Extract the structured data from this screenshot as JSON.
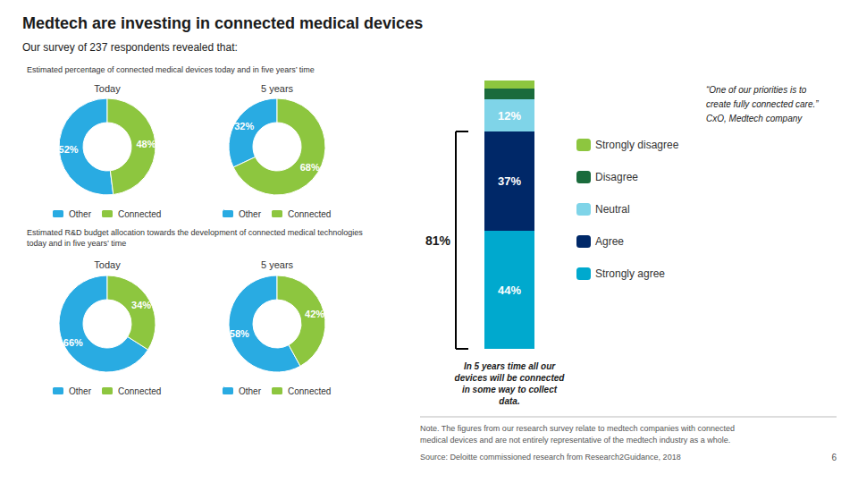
{
  "title": "Medtech are investing in connected medical devices",
  "subtitle": "Our survey of 237 respondents revealed that:",
  "quote": "“One of our priorities is to\ncreate fully connected care.”\nCxO, Medtech company",
  "note": "Note. The figures from our research survey relate to medtech companies with connected\nmedical devices and are not entirely representative of the medtech industry as a whole.",
  "source": "Source: Deloitte commissioned research from Research2Guidance, 2018",
  "page_number": "6",
  "chart_data": [
    {
      "type": "pie",
      "title": "Estimated percentage of connected medical devices today and in five years’ time",
      "categories": [
        "Other",
        "Connected"
      ],
      "colors": [
        "#29abe2",
        "#8dc63f"
      ],
      "legend": "bottom",
      "data_labels": true,
      "series": [
        {
          "name": "Today",
          "values": [
            52,
            48
          ],
          "value_labels": [
            "52%",
            "48%"
          ]
        },
        {
          "name": "5 years",
          "values": [
            32,
            68
          ],
          "value_labels": [
            "32%",
            "68%"
          ]
        }
      ]
    },
    {
      "type": "pie",
      "title": "Estimated R&D budget allocation towards the development of connected medical technologies\ntoday and in five years’ time",
      "categories": [
        "Other",
        "Connected"
      ],
      "colors": [
        "#29abe2",
        "#8dc63f"
      ],
      "legend": "bottom",
      "data_labels": true,
      "series": [
        {
          "name": "Today",
          "values": [
            66,
            34
          ],
          "value_labels": [
            "66%",
            "34%"
          ]
        },
        {
          "name": "5 years",
          "values": [
            58,
            42
          ],
          "value_labels": [
            "58%",
            "42%"
          ]
        }
      ]
    },
    {
      "type": "bar",
      "stacked": true,
      "categories": [
        null
      ],
      "x_label": "In 5 years time all our\ndevices will be connected\nin some way to collect\ndata.",
      "ylim": [
        0,
        100
      ],
      "tick_labels": false,
      "data_labels": true,
      "legend": "right",
      "annotations": [
        {
          "text": "81%",
          "from": 0,
          "to": 81
        }
      ],
      "series": [
        {
          "name": "Strongly agree",
          "color": "#00a9ce",
          "values": [
            44
          ],
          "value_labels": [
            "44%"
          ]
        },
        {
          "name": "Agree",
          "color": "#002868",
          "values": [
            37
          ],
          "value_labels": [
            "37%"
          ]
        },
        {
          "name": "Neutral",
          "color": "#7fd4e8",
          "values": [
            12
          ],
          "value_labels": [
            "12%"
          ]
        },
        {
          "name": "Disagree",
          "color": "#1a6b3c",
          "values": [
            4
          ]
        },
        {
          "name": "Strongly disagree",
          "color": "#8dc63f",
          "values": [
            3
          ]
        }
      ]
    }
  ]
}
